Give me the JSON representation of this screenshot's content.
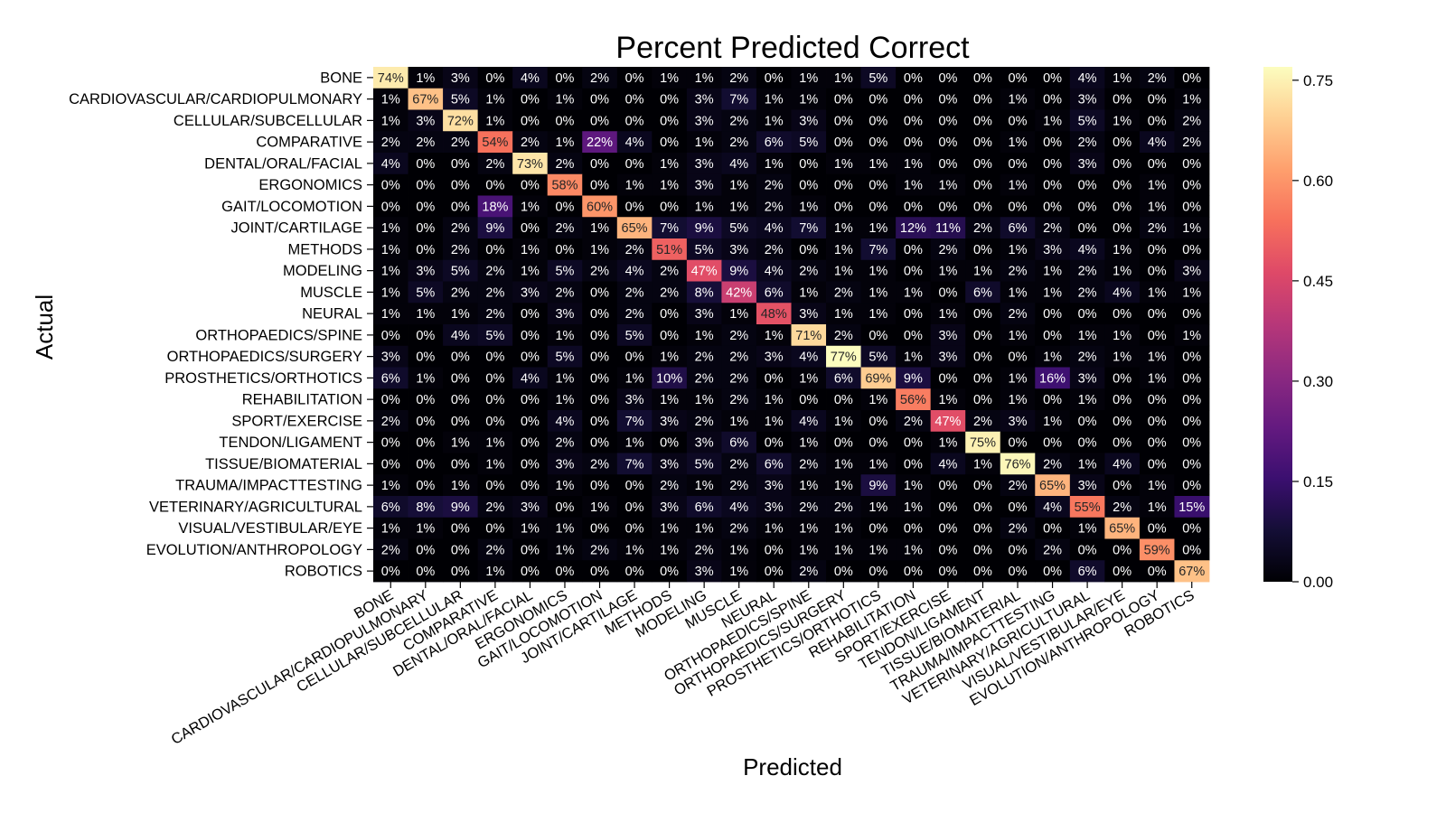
{
  "chart_data": {
    "type": "heatmap",
    "title": "Percent Predicted Correct",
    "xlabel": "Predicted",
    "ylabel": "Actual",
    "colormap": "magma",
    "colorbar": {
      "min": 0.0,
      "max": 0.77,
      "ticks": [
        0.0,
        0.15,
        0.3,
        0.45,
        0.6,
        0.75
      ],
      "tick_labels": [
        "0.00",
        "0.15",
        "0.30",
        "0.45",
        "0.60",
        "0.75"
      ]
    },
    "categories": [
      "BONE",
      "CARDIOVASCULAR/CARDIOPULMONARY",
      "CELLULAR/SUBCELLULAR",
      "COMPARATIVE",
      "DENTAL/ORAL/FACIAL",
      "ERGONOMICS",
      "GAIT/LOCOMOTION",
      "JOINT/CARTILAGE",
      "METHODS",
      "MODELING",
      "MUSCLE",
      "NEURAL",
      "ORTHOPAEDICS/SPINE",
      "ORTHOPAEDICS/SURGERY",
      "PROSTHETICS/ORTHOTICS",
      "REHABILITATION",
      "SPORT/EXERCISE",
      "TENDON/LIGAMENT",
      "TISSUE/BIOMATERIAL",
      "TRAUMA/IMPACTTESTING",
      "VETERINARY/AGRICULTURAL",
      "VISUAL/VESTIBULAR/EYE",
      "EVOLUTION/ANTHROPOLOGY",
      "ROBOTICS"
    ],
    "values": [
      [
        74,
        1,
        3,
        0,
        4,
        0,
        2,
        0,
        1,
        1,
        2,
        0,
        1,
        1,
        5,
        0,
        0,
        0,
        0,
        0,
        4,
        1,
        2,
        0
      ],
      [
        1,
        67,
        5,
        1,
        0,
        1,
        0,
        0,
        0,
        3,
        7,
        1,
        1,
        0,
        0,
        0,
        0,
        0,
        1,
        0,
        3,
        0,
        0,
        1
      ],
      [
        1,
        3,
        72,
        1,
        0,
        0,
        0,
        0,
        0,
        3,
        2,
        1,
        3,
        0,
        0,
        0,
        0,
        0,
        0,
        1,
        5,
        1,
        0,
        2
      ],
      [
        2,
        2,
        2,
        54,
        2,
        1,
        22,
        4,
        0,
        1,
        2,
        6,
        5,
        0,
        0,
        0,
        0,
        0,
        1,
        0,
        2,
        0,
        4,
        2
      ],
      [
        4,
        0,
        0,
        2,
        73,
        2,
        0,
        0,
        1,
        3,
        4,
        1,
        0,
        1,
        1,
        1,
        0,
        0,
        0,
        0,
        3,
        0,
        0,
        0
      ],
      [
        0,
        0,
        0,
        0,
        0,
        58,
        0,
        1,
        1,
        3,
        1,
        2,
        0,
        0,
        0,
        1,
        1,
        0,
        1,
        0,
        0,
        0,
        1,
        0
      ],
      [
        0,
        0,
        0,
        18,
        1,
        0,
        60,
        0,
        0,
        1,
        1,
        2,
        1,
        0,
        0,
        0,
        0,
        0,
        0,
        0,
        0,
        0,
        1,
        0
      ],
      [
        1,
        0,
        2,
        9,
        0,
        2,
        1,
        65,
        7,
        9,
        5,
        4,
        7,
        1,
        1,
        12,
        11,
        2,
        6,
        2,
        0,
        0,
        2,
        1
      ],
      [
        1,
        0,
        2,
        0,
        1,
        0,
        1,
        2,
        51,
        5,
        3,
        2,
        0,
        1,
        7,
        0,
        2,
        0,
        1,
        3,
        4,
        1,
        0,
        0
      ],
      [
        1,
        3,
        5,
        2,
        1,
        5,
        2,
        4,
        2,
        47,
        9,
        4,
        2,
        1,
        1,
        0,
        1,
        1,
        2,
        1,
        2,
        1,
        0,
        3
      ],
      [
        1,
        5,
        2,
        2,
        3,
        2,
        0,
        2,
        2,
        8,
        42,
        6,
        1,
        2,
        1,
        1,
        0,
        6,
        1,
        1,
        2,
        4,
        1,
        1
      ],
      [
        1,
        1,
        1,
        2,
        0,
        3,
        0,
        2,
        0,
        3,
        1,
        48,
        3,
        1,
        1,
        0,
        1,
        0,
        2,
        0,
        0,
        0,
        0,
        0
      ],
      [
        0,
        0,
        4,
        5,
        0,
        1,
        0,
        5,
        0,
        1,
        2,
        1,
        71,
        2,
        0,
        0,
        3,
        0,
        1,
        0,
        1,
        1,
        0,
        1
      ],
      [
        3,
        0,
        0,
        0,
        0,
        5,
        0,
        0,
        1,
        2,
        2,
        3,
        4,
        77,
        5,
        1,
        3,
        0,
        0,
        1,
        2,
        1,
        1,
        0
      ],
      [
        6,
        1,
        0,
        0,
        4,
        1,
        0,
        1,
        10,
        2,
        2,
        0,
        1,
        6,
        69,
        9,
        0,
        0,
        1,
        16,
        3,
        0,
        1,
        0
      ],
      [
        0,
        0,
        0,
        0,
        0,
        1,
        0,
        3,
        1,
        1,
        2,
        1,
        0,
        0,
        1,
        56,
        1,
        0,
        1,
        0,
        1,
        0,
        0,
        0
      ],
      [
        2,
        0,
        0,
        0,
        0,
        4,
        0,
        7,
        3,
        2,
        1,
        1,
        4,
        1,
        0,
        2,
        47,
        2,
        3,
        1,
        0,
        0,
        0,
        0
      ],
      [
        0,
        0,
        1,
        1,
        0,
        2,
        0,
        1,
        0,
        3,
        6,
        0,
        1,
        0,
        0,
        0,
        1,
        75,
        0,
        0,
        0,
        0,
        0,
        0
      ],
      [
        0,
        0,
        0,
        1,
        0,
        3,
        2,
        7,
        3,
        5,
        2,
        6,
        2,
        1,
        1,
        0,
        4,
        1,
        76,
        2,
        1,
        4,
        0,
        0
      ],
      [
        1,
        0,
        1,
        0,
        0,
        1,
        0,
        0,
        2,
        1,
        2,
        3,
        1,
        1,
        9,
        1,
        0,
        0,
        2,
        65,
        3,
        0,
        1,
        0
      ],
      [
        6,
        8,
        9,
        2,
        3,
        0,
        1,
        0,
        3,
        6,
        4,
        3,
        2,
        2,
        1,
        1,
        0,
        0,
        0,
        4,
        55,
        2,
        1,
        15
      ],
      [
        1,
        1,
        0,
        0,
        1,
        1,
        0,
        0,
        1,
        1,
        2,
        1,
        1,
        1,
        0,
        0,
        0,
        0,
        2,
        0,
        1,
        65,
        0,
        0
      ],
      [
        2,
        0,
        0,
        2,
        0,
        1,
        2,
        1,
        1,
        2,
        1,
        0,
        1,
        1,
        1,
        1,
        0,
        0,
        0,
        2,
        0,
        0,
        59,
        0
      ],
      [
        0,
        0,
        0,
        1,
        0,
        0,
        0,
        0,
        0,
        3,
        1,
        0,
        2,
        0,
        0,
        0,
        0,
        0,
        0,
        0,
        6,
        0,
        0,
        67
      ]
    ]
  }
}
